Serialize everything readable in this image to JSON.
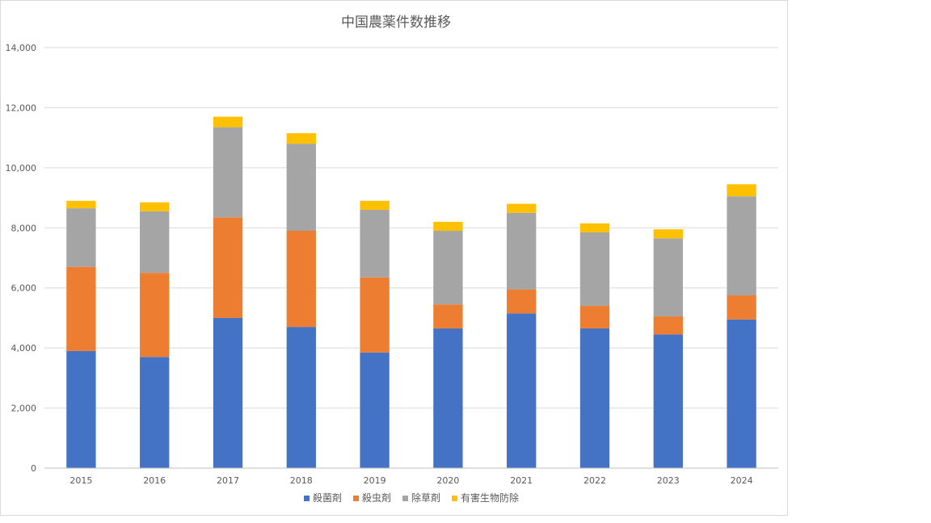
{
  "chart_data": {
    "type": "bar",
    "stacked": true,
    "title": "中国農薬件数推移",
    "xlabel": "",
    "ylabel": "",
    "ylim": [
      0,
      14000
    ],
    "y_ticks": [
      0,
      2000,
      4000,
      6000,
      8000,
      10000,
      12000,
      14000
    ],
    "y_tick_labels": [
      "0",
      "2,000",
      "4,000",
      "6,000",
      "8,000",
      "10,000",
      "12,000",
      "14,000"
    ],
    "grid": true,
    "legend_position": "bottom",
    "categories": [
      "2015",
      "2016",
      "2017",
      "2018",
      "2019",
      "2020",
      "2021",
      "2022",
      "2023",
      "2024"
    ],
    "series": [
      {
        "name": "殺菌剤",
        "color": "#4472c4",
        "values": [
          3900,
          3700,
          5000,
          4700,
          3850,
          4650,
          5150,
          4650,
          4450,
          4950
        ]
      },
      {
        "name": "殺虫剤",
        "color": "#ed7d31",
        "values": [
          2800,
          2800,
          3350,
          3200,
          2500,
          800,
          800,
          750,
          600,
          800
        ]
      },
      {
        "name": "除草剤",
        "color": "#a5a5a5",
        "values": [
          1950,
          2050,
          3000,
          2900,
          2250,
          2450,
          2550,
          2450,
          2600,
          3300
        ]
      },
      {
        "name": "有害生物防除",
        "color": "#ffc000",
        "values": [
          250,
          300,
          350,
          350,
          300,
          300,
          300,
          300,
          300,
          400
        ]
      }
    ]
  }
}
